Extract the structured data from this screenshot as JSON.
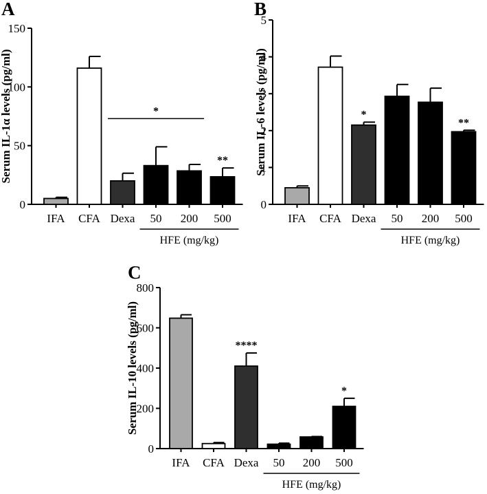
{
  "chart_data": [
    {
      "panel": "A",
      "type": "bar",
      "ylabel": "Serum IL-1α levels (pg/ml)",
      "ylim": [
        0,
        150
      ],
      "yticks": [
        "0",
        "50",
        "100",
        "150"
      ],
      "categories": [
        "IFA",
        "CFA",
        "Dexa",
        "50",
        "200",
        "500"
      ],
      "values": [
        5,
        116,
        20,
        33,
        28.5,
        23.5
      ],
      "errors": [
        1,
        10,
        6.5,
        16,
        5.5,
        7.5
      ],
      "colors": [
        "#a9a9a9",
        "#ffffff",
        "#2f2f2f",
        "#000000",
        "#000000",
        "#000000"
      ],
      "significance": [
        "",
        "",
        "",
        "",
        "",
        "**"
      ],
      "comparison_line": {
        "from": 2,
        "to": 4,
        "value": 73,
        "label": "*"
      },
      "group_label": "HFE (mg/kg)",
      "group_span": [
        3,
        5
      ]
    },
    {
      "panel": "B",
      "type": "bar",
      "ylabel": "Serum IL-6 levels (pg/ml)",
      "ylim": [
        0,
        5
      ],
      "yticks": [
        "0",
        "1",
        "2",
        "3",
        "4",
        "5"
      ],
      "categories": [
        "IFA",
        "CFA",
        "Dexa",
        "50",
        "200",
        "500"
      ],
      "values": [
        0.45,
        3.72,
        2.15,
        2.93,
        2.77,
        1.97
      ],
      "errors": [
        0.05,
        0.3,
        0.08,
        0.32,
        0.38,
        0.04
      ],
      "colors": [
        "#a9a9a9",
        "#ffffff",
        "#2f2f2f",
        "#000000",
        "#000000",
        "#000000"
      ],
      "significance": [
        "",
        "",
        "*",
        "",
        "",
        "**"
      ],
      "group_label": "HFE (mg/kg)",
      "group_span": [
        3,
        5
      ]
    },
    {
      "panel": "C",
      "type": "bar",
      "ylabel": "Serum IL-10 levels (pg/ml)",
      "ylim": [
        0,
        800
      ],
      "yticks": [
        "0",
        "200",
        "400",
        "600",
        "800"
      ],
      "categories": [
        "IFA",
        "CFA",
        "Dexa",
        "50",
        "200",
        "500"
      ],
      "values": [
        648,
        25,
        410,
        22,
        58,
        210
      ],
      "errors": [
        17,
        5,
        65,
        5,
        2,
        40
      ],
      "colors": [
        "#a9a9a9",
        "#ffffff",
        "#2f2f2f",
        "#000000",
        "#000000",
        "#000000"
      ],
      "significance": [
        "",
        "",
        "****",
        "",
        "",
        "*"
      ],
      "group_label": "HFE (mg/kg)",
      "group_span": [
        3,
        5
      ]
    }
  ]
}
